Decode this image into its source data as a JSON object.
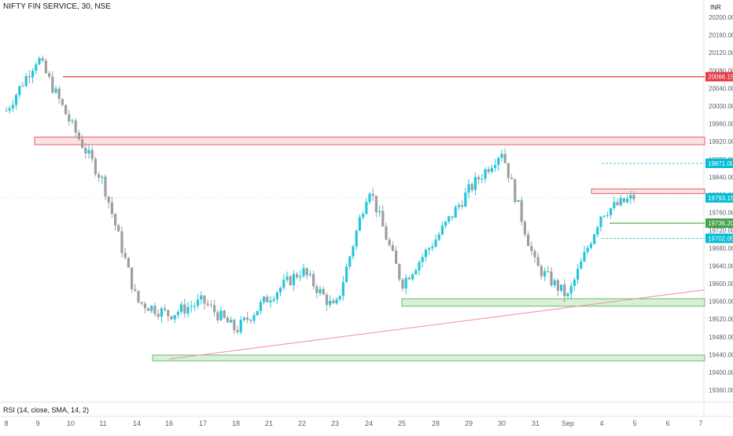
{
  "header": {
    "symbol_title": "NIFTY FIN SERVICE, 30, NSE",
    "currency": "INR"
  },
  "indicator": {
    "label": "RSI (14, close, SMA, 14, 2)"
  },
  "colors": {
    "up": "#26c6da",
    "down": "#9e9e9e",
    "resistance_line": "#e53945",
    "resistance_zone_fill": "#fde1e4",
    "support_zone_fill": "#d9f0d6",
    "support_zone_border": "#4caf50",
    "trendline": "#f48fb1",
    "target_line": "#43a047",
    "last_price": "#00bcd4",
    "grid_text": "#5d606b"
  },
  "chart_data": {
    "type": "candlestick",
    "x_ticks": [
      "8",
      "9",
      "10",
      "11",
      "14",
      "16",
      "17",
      "18",
      "21",
      "22",
      "23",
      "24",
      "25",
      "28",
      "29",
      "30",
      "31",
      "Sep",
      "4",
      "5",
      "6",
      "7"
    ],
    "y_ticks": [
      20200,
      20160,
      20120,
      20080,
      20040,
      20000,
      19960,
      19920,
      19880,
      19840,
      19800,
      19760,
      19720,
      19680,
      19640,
      19600,
      19560,
      19520,
      19480,
      19440,
      19400,
      19360
    ],
    "ylim": [
      19340,
      20215
    ],
    "price_labels": [
      {
        "text": "20066.15",
        "value": 20066.15,
        "kind": "resistance"
      },
      {
        "text": "19871.00",
        "value": 19871.0,
        "kind": "stop"
      },
      {
        "text": "19793.15",
        "value": 19793.15,
        "kind": "last"
      },
      {
        "text": "19736.20",
        "value": 19736.2,
        "kind": "target"
      },
      {
        "text": "19702.05",
        "value": 19702.05,
        "kind": "entry"
      }
    ],
    "resistance_level": 20066.15,
    "resistance_zone": [
      19913,
      19930
    ],
    "support_zones": [
      [
        19549,
        19566
      ],
      [
        19426,
        19439
      ]
    ],
    "key_points": [
      {
        "x": "8",
        "y": 19990
      },
      {
        "x": "9",
        "y": 20110
      },
      {
        "x": "10",
        "y": 19960
      },
      {
        "x": "11",
        "y": 19830
      },
      {
        "x": "14",
        "y": 19560
      },
      {
        "x": "16",
        "y": 19530
      },
      {
        "x": "17",
        "y": 19560
      },
      {
        "x": "18",
        "y": 19495
      },
      {
        "x": "21",
        "y": 19570
      },
      {
        "x": "22",
        "y": 19630
      },
      {
        "x": "23",
        "y": 19540
      },
      {
        "x": "24",
        "y": 19820
      },
      {
        "x": "25",
        "y": 19600
      },
      {
        "x": "28",
        "y": 19700
      },
      {
        "x": "29",
        "y": 19810
      },
      {
        "x": "30",
        "y": 19900
      },
      {
        "x": "31",
        "y": 19640
      },
      {
        "x": "Sep",
        "y": 19570
      },
      {
        "x": "4",
        "y": 19760
      },
      {
        "x": "5",
        "y": 19795
      }
    ]
  }
}
